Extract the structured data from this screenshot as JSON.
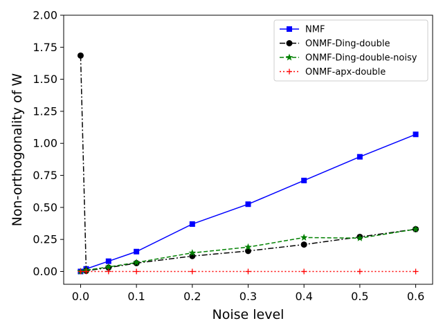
{
  "chart_data": {
    "type": "line",
    "title": "",
    "xlabel": "Noise level",
    "ylabel": "Non-orthogonality of W",
    "xlim": [
      -0.0303,
      0.6303
    ],
    "ylim": [
      -0.1,
      2.0
    ],
    "xticks": [
      0.0,
      0.1,
      0.2,
      0.3,
      0.4,
      0.5,
      0.6
    ],
    "xtick_labels": [
      "0.0",
      "0.1",
      "0.2",
      "0.3",
      "0.4",
      "0.5",
      "0.6"
    ],
    "yticks": [
      0.0,
      0.25,
      0.5,
      0.75,
      1.0,
      1.25,
      1.5,
      1.75,
      2.0
    ],
    "ytick_labels": [
      "0.00",
      "0.25",
      "0.50",
      "0.75",
      "1.00",
      "1.25",
      "1.50",
      "1.75",
      "2.00"
    ],
    "grid": false,
    "legend_position": "top-right",
    "series": [
      {
        "name": "NMF",
        "color": "#0000ff",
        "linestyle": "solid",
        "marker": "square",
        "x": [
          0.0,
          0.01,
          0.05,
          0.1,
          0.2,
          0.3,
          0.4,
          0.5,
          0.6
        ],
        "y": [
          0.0,
          0.02,
          0.08,
          0.155,
          0.37,
          0.525,
          0.71,
          0.895,
          1.07
        ]
      },
      {
        "name": "ONMF-Ding-double",
        "color": "#000000",
        "linestyle": "dashdot",
        "marker": "circle",
        "x": [
          0.0,
          0.01,
          0.05,
          0.1,
          0.2,
          0.3,
          0.4,
          0.5,
          0.6
        ],
        "y": [
          1.685,
          0.005,
          0.03,
          0.065,
          0.12,
          0.16,
          0.21,
          0.27,
          0.33
        ]
      },
      {
        "name": "ONMF-Ding-double-noisy",
        "color": "#008000",
        "linestyle": "dashed",
        "marker": "star",
        "x": [
          0.0,
          0.01,
          0.05,
          0.1,
          0.2,
          0.3,
          0.4,
          0.5,
          0.6
        ],
        "y": [
          0.0,
          0.01,
          0.035,
          0.07,
          0.145,
          0.19,
          0.265,
          0.26,
          0.33
        ]
      },
      {
        "name": "ONMF-apx-double",
        "color": "#ff0000",
        "linestyle": "dotted",
        "marker": "plus",
        "x": [
          0.0,
          0.01,
          0.05,
          0.1,
          0.2,
          0.3,
          0.4,
          0.5,
          0.6
        ],
        "y": [
          0.0,
          0.0,
          0.0,
          0.0,
          0.0,
          0.0,
          0.0,
          0.0,
          0.0
        ]
      }
    ]
  }
}
